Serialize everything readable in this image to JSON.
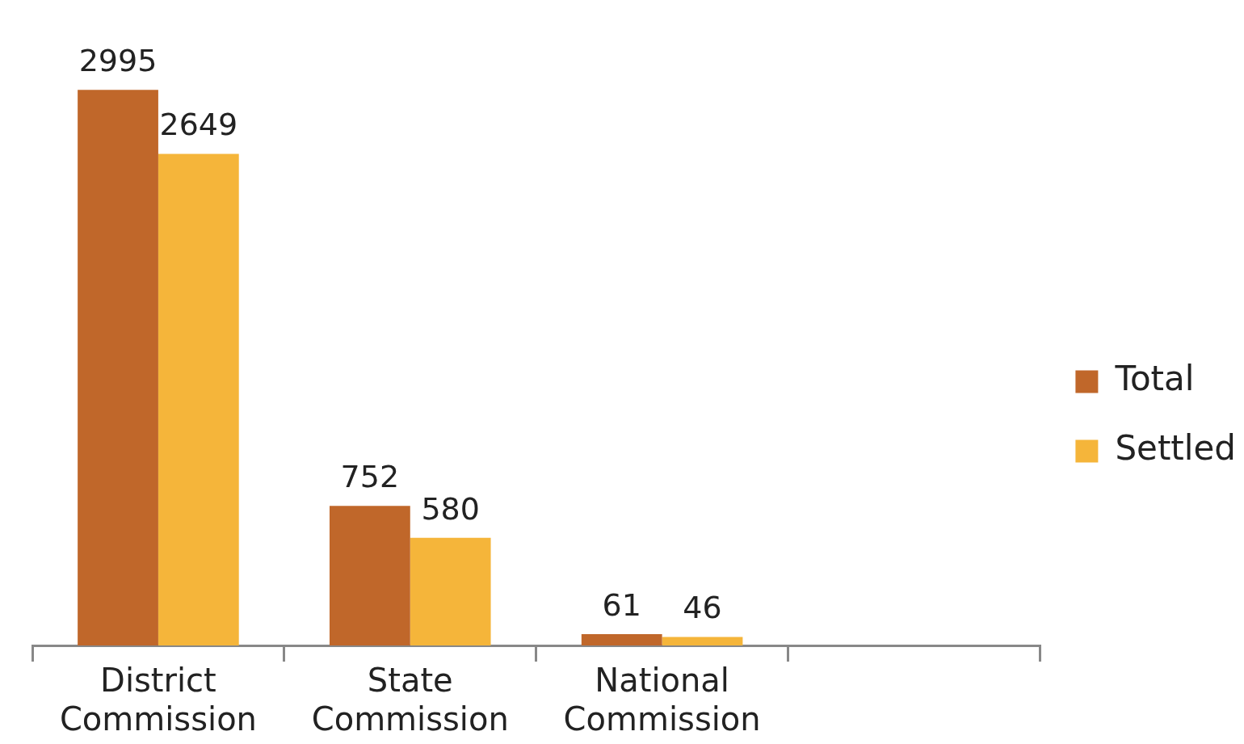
{
  "chart_data": {
    "type": "bar",
    "categories": [
      "District Commission",
      "State Commission",
      "National Commission",
      null
    ],
    "series": [
      {
        "name": "Total",
        "color": "#c0672a",
        "values": [
          2995,
          752,
          61,
          null
        ]
      },
      {
        "name": "Settled",
        "color": "#f5b53a",
        "values": [
          2649,
          580,
          46,
          null
        ]
      }
    ],
    "data_labels": true,
    "legend": "right",
    "grid": false,
    "tick_labels": "x"
  }
}
